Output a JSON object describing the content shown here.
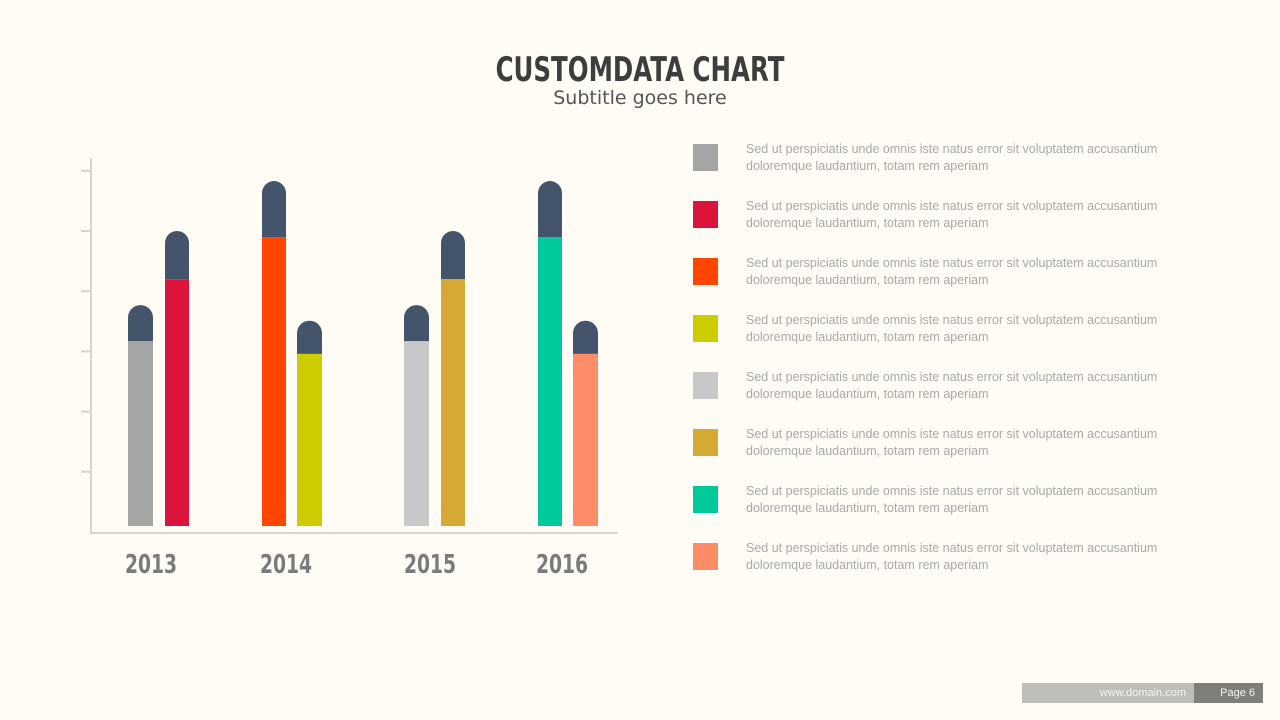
{
  "header": {
    "title": "CUSTOMDATA CHART",
    "subtitle": "Subtitle goes here"
  },
  "chart_data": {
    "type": "bar",
    "title": "CUSTOMDATA CHART",
    "subtitle": "Subtitle goes here",
    "xlabel": "",
    "ylabel": "",
    "categories": [
      "2013",
      "2014",
      "2015",
      "2016"
    ],
    "ylim": [
      0,
      6.1
    ],
    "y_ticks": [
      1,
      2,
      3,
      4,
      5,
      6
    ],
    "y_tick_labels_visible": false,
    "grid": false,
    "stacked_cap": true,
    "cap_color": "#44546a",
    "bars": [
      {
        "category": "2013",
        "series": 1,
        "value": 3.07,
        "cap": 0.6,
        "color": "#a5a5a5"
      },
      {
        "category": "2013",
        "series": 2,
        "value": 4.1,
        "cap": 0.8,
        "color": "#dc143c"
      },
      {
        "category": "2014",
        "series": 3,
        "value": 4.8,
        "cap": 0.93,
        "color": "#ff4500"
      },
      {
        "category": "2014",
        "series": 4,
        "value": 2.86,
        "cap": 0.55,
        "color": "#cccc00"
      },
      {
        "category": "2015",
        "series": 5,
        "value": 3.07,
        "cap": 0.6,
        "color": "#c8c8c8"
      },
      {
        "category": "2015",
        "series": 6,
        "value": 4.1,
        "cap": 0.8,
        "color": "#d4aa35"
      },
      {
        "category": "2016",
        "series": 7,
        "value": 4.8,
        "cap": 0.93,
        "color": "#00c99c"
      },
      {
        "category": "2016",
        "series": 8,
        "value": 2.86,
        "cap": 0.55,
        "color": "#ff8c69"
      }
    ],
    "legend_position": "right"
  },
  "legend": {
    "items": [
      {
        "color": "#a5a5a5",
        "line1": "Sed ut perspiciatis unde omnis iste natus error sit voluptatem accusantium",
        "line2": "doloremque laudantium, totam rem aperiam"
      },
      {
        "color": "#dc143c",
        "line1": "Sed ut perspiciatis unde omnis iste natus error sit voluptatem accusantium",
        "line2": "doloremque laudantium, totam rem aperiam"
      },
      {
        "color": "#ff4500",
        "line1": "Sed ut perspiciatis unde omnis iste natus error sit voluptatem accusantium",
        "line2": "doloremque laudantium, totam rem aperiam"
      },
      {
        "color": "#cccc00",
        "line1": "Sed ut perspiciatis unde omnis iste natus error sit voluptatem accusantium",
        "line2": "doloremque laudantium, totam rem aperiam"
      },
      {
        "color": "#c8c8c8",
        "line1": "Sed ut perspiciatis unde omnis iste natus error sit voluptatem accusantium",
        "line2": "doloremque laudantium, totam rem aperiam"
      },
      {
        "color": "#d4aa35",
        "line1": "Sed ut perspiciatis unde omnis iste natus error sit voluptatem accusantium",
        "line2": "doloremque laudantium, totam rem aperiam"
      },
      {
        "color": "#00c99c",
        "line1": "Sed ut perspiciatis unde omnis iste natus error sit voluptatem accusantium",
        "line2": "doloremque laudantium, totam rem aperiam"
      },
      {
        "color": "#ff8c69",
        "line1": "Sed ut perspiciatis unde omnis iste natus error sit voluptatem accusantium",
        "line2": "doloremque laudantium, totam rem aperiam"
      }
    ]
  },
  "footer": {
    "url": "www.domain.com",
    "page": "Page 6"
  }
}
